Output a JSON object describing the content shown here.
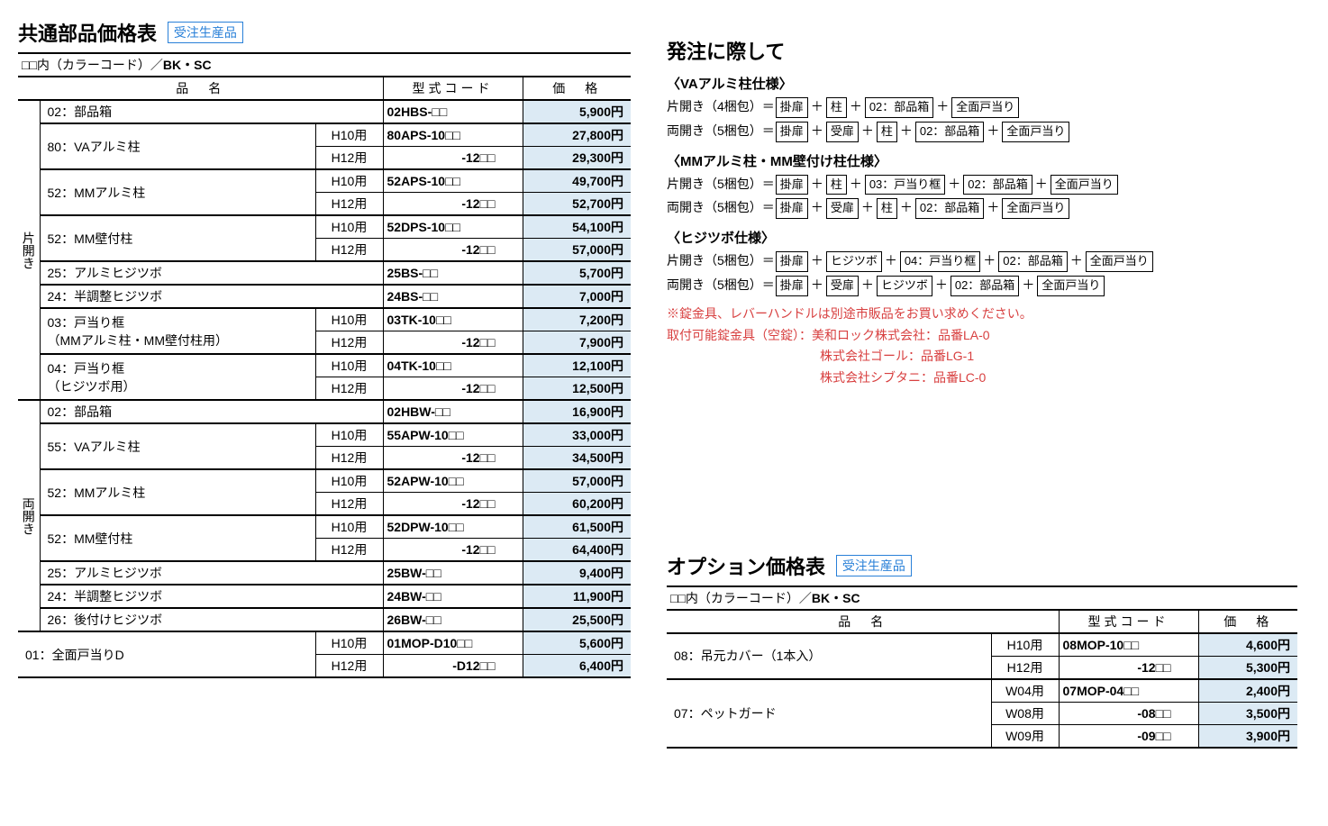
{
  "colors": {
    "price_bg": "#dceaf4",
    "accent": "#2980d8",
    "red": "#d84040",
    "border": "#000000"
  },
  "titles": {
    "main_table": "共通部品価格表",
    "tag": "受注生産品",
    "subhead_prefix": "□□内（カラーコード）／",
    "subhead_bold": "BK・SC",
    "col_name": "品　名",
    "col_code": "型式コード",
    "col_price": "価　格",
    "ordering": "発注に際して",
    "options_table": "オプション価格表"
  },
  "side_labels": {
    "single": "片開き",
    "double": "両開き"
  },
  "main_table": {
    "single": [
      {
        "name": "02：部品箱",
        "size": "",
        "code": "02HBS-□□",
        "price": "5,900円"
      },
      {
        "name": "80：VAアルミ柱",
        "size": "H10用",
        "code": "80APS-10□□",
        "price": "27,800円",
        "rowspan_name": 2
      },
      {
        "size": "H12用",
        "code": "-12□□",
        "price": "29,300円"
      },
      {
        "name": "52：MMアルミ柱",
        "size": "H10用",
        "code": "52APS-10□□",
        "price": "49,700円",
        "rowspan_name": 2
      },
      {
        "size": "H12用",
        "code": "-12□□",
        "price": "52,700円"
      },
      {
        "name": "52：MM壁付柱",
        "size": "H10用",
        "code": "52DPS-10□□",
        "price": "54,100円",
        "rowspan_name": 2
      },
      {
        "size": "H12用",
        "code": "-12□□",
        "price": "57,000円"
      },
      {
        "name": "25：アルミヒジツボ",
        "size": "",
        "code": "25BS-□□",
        "price": "5,700円"
      },
      {
        "name": "24：半調整ヒジツボ",
        "size": "",
        "code": "24BS-□□",
        "price": "7,000円"
      },
      {
        "name": "03：戸当り框\n（MMアルミ柱・MM壁付柱用）",
        "size": "H10用",
        "code": "03TK-10□□",
        "price": "7,200円",
        "rowspan_name": 2
      },
      {
        "size": "H12用",
        "code": "-12□□",
        "price": "7,900円"
      },
      {
        "name": "04：戸当り框\n（ヒジツボ用）",
        "size": "H10用",
        "code": "04TK-10□□",
        "price": "12,100円",
        "rowspan_name": 2
      },
      {
        "size": "H12用",
        "code": "-12□□",
        "price": "12,500円"
      }
    ],
    "double": [
      {
        "name": "02：部品箱",
        "size": "",
        "code": "02HBW-□□",
        "price": "16,900円"
      },
      {
        "name": "55：VAアルミ柱",
        "size": "H10用",
        "code": "55APW-10□□",
        "price": "33,000円",
        "rowspan_name": 2
      },
      {
        "size": "H12用",
        "code": "-12□□",
        "price": "34,500円"
      },
      {
        "name": "52：MMアルミ柱",
        "size": "H10用",
        "code": "52APW-10□□",
        "price": "57,000円",
        "rowspan_name": 2
      },
      {
        "size": "H12用",
        "code": "-12□□",
        "price": "60,200円"
      },
      {
        "name": "52：MM壁付柱",
        "size": "H10用",
        "code": "52DPW-10□□",
        "price": "61,500円",
        "rowspan_name": 2
      },
      {
        "size": "H12用",
        "code": "-12□□",
        "price": "64,400円"
      },
      {
        "name": "25：アルミヒジツボ",
        "size": "",
        "code": "25BW-□□",
        "price": "9,400円"
      },
      {
        "name": "24：半調整ヒジツボ",
        "size": "",
        "code": "24BW-□□",
        "price": "11,900円"
      },
      {
        "name": "26：後付けヒジツボ",
        "size": "",
        "code": "26BW-□□",
        "price": "25,500円"
      }
    ],
    "bottom": [
      {
        "name": "01：全面戸当りD",
        "size": "H10用",
        "code": "01MOP-D10□□",
        "price": "5,600円",
        "rowspan_name": 2
      },
      {
        "size": "H12用",
        "code": "-D12□□",
        "price": "6,400円"
      }
    ]
  },
  "ordering_specs": [
    {
      "head": "〈VAアルミ柱仕様〉",
      "lines": [
        {
          "prefix": "片開き（4梱包）＝",
          "boxes": [
            "掛扉",
            "柱",
            "02：部品箱",
            "全面戸当り"
          ]
        },
        {
          "prefix": "両開き（5梱包）＝",
          "boxes": [
            "掛扉",
            "受扉",
            "柱",
            "02：部品箱",
            "全面戸当り"
          ]
        }
      ]
    },
    {
      "head": "〈MMアルミ柱・MM壁付け柱仕様〉",
      "lines": [
        {
          "prefix": "片開き（5梱包）＝",
          "boxes": [
            "掛扉",
            "柱",
            "03：戸当り框",
            "02：部品箱",
            "全面戸当り"
          ]
        },
        {
          "prefix": "両開き（5梱包）＝",
          "boxes": [
            "掛扉",
            "受扉",
            "柱",
            "02：部品箱",
            "全面戸当り"
          ]
        }
      ]
    },
    {
      "head": "〈ヒジツボ仕様〉",
      "lines": [
        {
          "prefix": "片開き（5梱包）＝",
          "boxes": [
            "掛扉",
            "ヒジツボ",
            "04：戸当り框",
            "02：部品箱",
            "全面戸当り"
          ]
        },
        {
          "prefix": "両開き（5梱包）＝",
          "boxes": [
            "掛扉",
            "受扉",
            "ヒジツボ",
            "02：部品箱",
            "全面戸当り"
          ]
        }
      ]
    }
  ],
  "notes": {
    "line1": "※錠金具、レバーハンドルは別途市販品をお買い求めください。",
    "line2": "取付可能錠金具（空錠）：美和ロック株式会社：品番LA-0",
    "line3_indent": "株式会社ゴール：品番LG-1",
    "line4_indent": "株式会社シブタニ：品番LC-0"
  },
  "options_table": [
    {
      "name": "08：吊元カバー（1本入）",
      "size": "H10用",
      "code": "08MOP-10□□",
      "price": "4,600円",
      "rowspan_name": 2
    },
    {
      "size": "H12用",
      "code": "-12□□",
      "price": "5,300円"
    },
    {
      "name": "07：ペットガード",
      "size": "W04用",
      "code": "07MOP-04□□",
      "price": "2,400円",
      "rowspan_name": 3
    },
    {
      "size": "W08用",
      "code": "-08□□",
      "price": "3,500円"
    },
    {
      "size": "W09用",
      "code": "-09□□",
      "price": "3,900円"
    }
  ]
}
